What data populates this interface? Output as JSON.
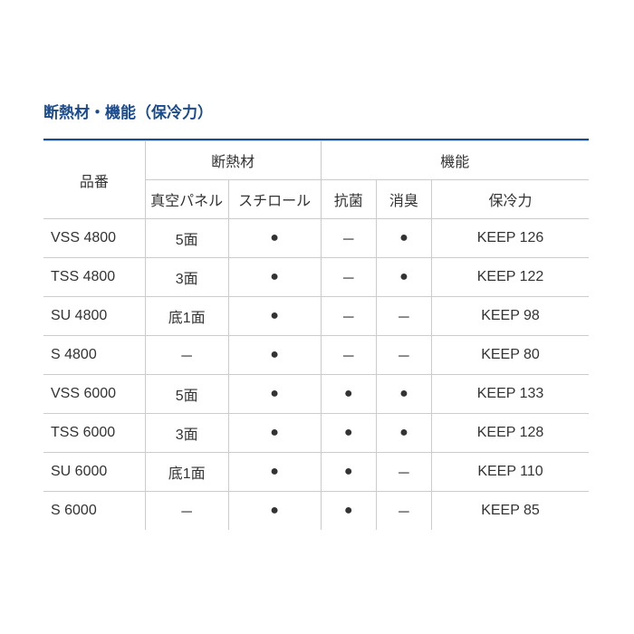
{
  "title_color": "#1a4b8c",
  "toprule_color": "#1a4b8c",
  "title": "断熱材・機能（保冷力）",
  "headers": {
    "model": "品番",
    "insulation": "断熱材",
    "function": "機能",
    "vacuum": "真空パネル",
    "styro": "スチロール",
    "antibac": "抗菌",
    "deodor": "消臭",
    "cooling": "保冷力"
  },
  "dot": "●",
  "dash": "－",
  "rows": [
    {
      "model": "VSS 4800",
      "vacuum": "5面",
      "styro": "●",
      "antibac": "－",
      "deodor": "●",
      "cooling": "KEEP 126"
    },
    {
      "model": "TSS 4800",
      "vacuum": "3面",
      "styro": "●",
      "antibac": "－",
      "deodor": "●",
      "cooling": "KEEP 122"
    },
    {
      "model": "SU 4800",
      "vacuum": "底1面",
      "styro": "●",
      "antibac": "－",
      "deodor": "－",
      "cooling": "KEEP 98"
    },
    {
      "model": "S 4800",
      "vacuum": "－",
      "styro": "●",
      "antibac": "－",
      "deodor": "－",
      "cooling": "KEEP 80"
    },
    {
      "model": "VSS 6000",
      "vacuum": "5面",
      "styro": "●",
      "antibac": "●",
      "deodor": "●",
      "cooling": "KEEP 133"
    },
    {
      "model": "TSS 6000",
      "vacuum": "3面",
      "styro": "●",
      "antibac": "●",
      "deodor": "●",
      "cooling": "KEEP 128"
    },
    {
      "model": "SU 6000",
      "vacuum": "底1面",
      "styro": "●",
      "antibac": "●",
      "deodor": "－",
      "cooling": "KEEP 110"
    },
    {
      "model": "S 6000",
      "vacuum": "－",
      "styro": "●",
      "antibac": "●",
      "deodor": "－",
      "cooling": "KEEP 85"
    }
  ],
  "col_widths": [
    "110",
    "90",
    "100",
    "60",
    "60",
    "170"
  ]
}
